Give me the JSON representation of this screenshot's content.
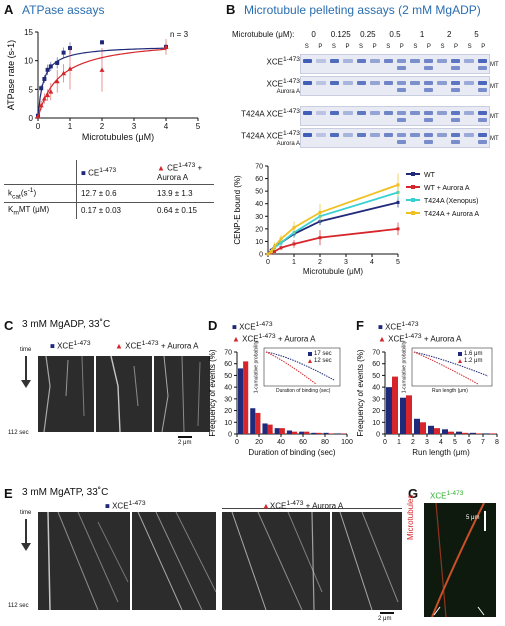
{
  "panelA": {
    "letter": "A",
    "title": "ATPase assays",
    "n_label": "n = 3",
    "table": {
      "col1_header": "CE",
      "col1_sup": "1-473",
      "col2_header": "CE",
      "col2_sup": "1-473",
      "col2_suffix": " + Aurora A",
      "row1_label": "k",
      "row1_sub": "cat",
      "row1_unit": "(s",
      "row1_unit_sup": "-1",
      "row1_unit_end": ")",
      "row1_v1": "12.7 ± 0.6",
      "row1_v2": "13.9 ± 1.3",
      "row2_label": "K",
      "row2_sub": "m",
      "row2_unit": "MT (μM)",
      "row2_v1": "0.17 ± 0.03",
      "row2_v2": "0.64 ± 0.15"
    }
  },
  "panelB": {
    "letter": "B",
    "title": "Microtubule pelleting assays (2 mM MgADP)",
    "mt_label": "Microtubule (μM):",
    "concentrations": [
      "0",
      "0.125",
      "0.25",
      "0.5",
      "1",
      "2",
      "5"
    ],
    "sp": [
      "S",
      "P"
    ],
    "rows": [
      {
        "label": "XCE",
        "sup": "1-473",
        "sub": ""
      },
      {
        "label": "XCE",
        "sup": "1-473",
        "sub": "Aurora A"
      },
      {
        "label": "T424A XCE",
        "sup": "1-473",
        "sub": ""
      },
      {
        "label": "T424A XCE",
        "sup": "1-473",
        "sub": "Aurora A"
      }
    ],
    "mt_marker": "MT"
  },
  "panelC": {
    "letter": "C",
    "title": "3 mM MgADP, 33˚C",
    "legend1": "XCE",
    "legend1_sup": "1-473",
    "legend2": "XCE",
    "legend2_sup": "1-473",
    "legend2_suffix": " + Aurora A",
    "time_label": "time",
    "time_value": "112 sec",
    "scale": "2 μm"
  },
  "panelD": {
    "letter": "D",
    "legend1": "XCE",
    "legend1_sup": "1-473",
    "legend2": "XCE",
    "legend2_sup": "1-473",
    "legend2_suffix": " + Aurora A",
    "inset_legend1": "17 sec",
    "inset_legend2": "12 sec",
    "inset_xlabel": "Duration of binding (sec)",
    "inset_ylabel": "1-cumulative probability"
  },
  "panelE": {
    "letter": "E",
    "title": "3 mM MgATP, 33˚C",
    "legend1": "XCE",
    "legend1_sup": "1-473",
    "legend2": "XCE",
    "legend2_sup": "1-473",
    "legend2_suffix": " + Aurora A",
    "time_label": "time",
    "time_value": "112 sec",
    "scale": "2 μm"
  },
  "panelF": {
    "letter": "F",
    "legend1": "XCE",
    "legend1_sup": "1-473",
    "legend2": "XCE",
    "legend2_sup": "1-473",
    "legend2_suffix": " + Aurora A",
    "inset_legend1": "1.6 μm",
    "inset_legend2": "1.2 μm",
    "inset_xlabel": "Run length (μm)",
    "inset_ylabel": "1-cumulative probability"
  },
  "panelG": {
    "letter": "G",
    "label": "XCE",
    "label_sup": "1-473",
    "side_label": "Microtubules",
    "scale": "5 μm"
  },
  "chart_data": [
    {
      "id": "A",
      "type": "scatter",
      "xlabel": "Microtubules (μM)",
      "ylabel": "ATPase rate (s",
      "ylabel_sup": "-1",
      "ylabel_end": ")",
      "xlim": [
        0,
        5
      ],
      "ylim": [
        0,
        15
      ],
      "xticks": [
        "0",
        "1",
        "2",
        "3",
        "4",
        "5"
      ],
      "yticks": [
        "0",
        "5",
        "10",
        "15"
      ],
      "colors": {
        "wt": "#1f2a7a",
        "aur": "#d6262b"
      },
      "series": [
        {
          "key": "wt",
          "x": [
            0.0,
            0.1,
            0.2,
            0.3,
            0.4,
            0.6,
            0.8,
            1.0,
            2.0,
            4.0
          ],
          "y": [
            0.4,
            5.2,
            6.8,
            8.4,
            9.0,
            9.6,
            11.4,
            12.2,
            13.2,
            12.4
          ],
          "err": [
            0.2,
            0.6,
            0.7,
            0.9,
            0.8,
            1.0,
            0.9,
            1.0,
            0.4,
            0.6
          ],
          "fit": {
            "kcat": 12.7,
            "km": 0.17
          }
        },
        {
          "key": "aur",
          "x": [
            0.0,
            0.1,
            0.2,
            0.3,
            0.4,
            0.6,
            0.8,
            1.0,
            2.0,
            4.0
          ],
          "y": [
            0.3,
            2.2,
            3.4,
            4.0,
            4.6,
            6.4,
            7.8,
            8.6,
            8.4,
            12.4
          ],
          "err": [
            0.2,
            0.8,
            0.9,
            1.0,
            1.5,
            2.0,
            1.6,
            3.6,
            3.8,
            1.4
          ],
          "fit": {
            "kcat": 13.9,
            "km": 0.64
          }
        }
      ]
    },
    {
      "id": "B",
      "type": "line",
      "xlabel": "Microtubule (μM)",
      "ylabel": "CENP-E bound (%)",
      "xlim": [
        0,
        5
      ],
      "ylim": [
        0,
        70
      ],
      "xticks": [
        "0",
        "1",
        "2",
        "3",
        "4",
        "5"
      ],
      "yticks": [
        "0",
        "10",
        "20",
        "30",
        "40",
        "50",
        "60",
        "70"
      ],
      "x": [
        0,
        0.125,
        0.25,
        0.5,
        1,
        2,
        5
      ],
      "series": [
        {
          "name": "WT",
          "color": "#1f2a7a",
          "values": [
            0,
            3,
            6,
            9,
            16,
            26,
            41
          ],
          "err": [
            0,
            1,
            2,
            2,
            3,
            3,
            4
          ]
        },
        {
          "name": "WT + Aurora A",
          "color": "#d6262b",
          "values": [
            0,
            1,
            2,
            5,
            8,
            13,
            20
          ],
          "err": [
            0,
            1,
            1,
            2,
            3,
            6,
            5
          ]
        },
        {
          "name": "T424A (Xenopus)",
          "color": "#36d1d1",
          "values": [
            0,
            2,
            5,
            9,
            17,
            30,
            49
          ],
          "err": [
            0,
            1,
            2,
            3,
            4,
            5,
            6
          ]
        },
        {
          "name": "T424A + Aurora A",
          "color": "#f0c020",
          "values": [
            0,
            2,
            6,
            12,
            21,
            33,
            55
          ],
          "err": [
            0,
            2,
            3,
            3,
            5,
            7,
            9
          ]
        }
      ]
    },
    {
      "id": "D",
      "type": "bar",
      "xlabel": "Duration of binding (sec)",
      "ylabel": "Frequency of events (%)",
      "ylim": [
        0,
        70
      ],
      "xticks": [
        "0",
        "20",
        "40",
        "60",
        "80",
        "100"
      ],
      "yticks": [
        "0",
        "10",
        "20",
        "30",
        "40",
        "50",
        "60",
        "70"
      ],
      "categories": [
        "5",
        "15",
        "25",
        "35",
        "45",
        "55",
        "65",
        "75",
        "85"
      ],
      "series": [
        {
          "key": "wt",
          "color": "#1f2a7a",
          "values": [
            56,
            22,
            9,
            5,
            3,
            2,
            1,
            1,
            0.5
          ]
        },
        {
          "key": "aur",
          "color": "#d6262b",
          "values": [
            62,
            18,
            8,
            5,
            2,
            2,
            1,
            0.5,
            0.5
          ]
        }
      ]
    },
    {
      "id": "F",
      "type": "bar",
      "xlabel": "Run length (μm)",
      "ylabel": "Frequency of events (%)",
      "ylim": [
        0,
        70
      ],
      "xticks": [
        "0",
        "1",
        "2",
        "3",
        "4",
        "5",
        "6",
        "7",
        "8"
      ],
      "yticks": [
        "0",
        "10",
        "20",
        "30",
        "40",
        "50",
        "60",
        "70"
      ],
      "categories": [
        "0.5",
        "1.5",
        "2.5",
        "3.5",
        "4.5",
        "5.5",
        "6.5",
        "7.5"
      ],
      "series": [
        {
          "key": "wt",
          "color": "#1f2a7a",
          "values": [
            40,
            31,
            13,
            7,
            4,
            2,
            1,
            0.5
          ]
        },
        {
          "key": "aur",
          "color": "#d6262b",
          "values": [
            49,
            33,
            10,
            5,
            2,
            1,
            0.5,
            0.5
          ]
        }
      ]
    }
  ]
}
